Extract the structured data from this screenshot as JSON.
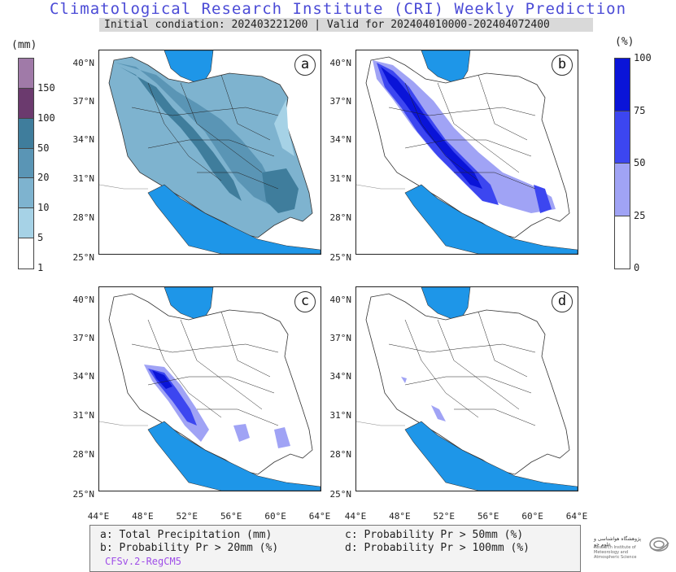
{
  "title": "Climatological Research Institute (CRI) Weekly Prediction",
  "subtitle": "Initial condiation: 202403221200 | Valid for 202404010000-202404072400",
  "precip_colorbar": {
    "unit": "(mm)",
    "ticks": [
      "150",
      "100",
      "50",
      "20",
      "10",
      "5",
      "1"
    ],
    "colors": [
      "#a07aa8",
      "#6b3a6e",
      "#3f7d9c",
      "#5a95b5",
      "#7eb3cf",
      "#a6d2e6",
      "#ffffff"
    ]
  },
  "prob_colorbar": {
    "unit": "(%)",
    "ticks": [
      "100",
      "75",
      "50",
      "25",
      "0"
    ],
    "colors": [
      "#0a14d8",
      "#3c46f0",
      "#a0a3f5",
      "#ffffff"
    ]
  },
  "panels": [
    {
      "label": "a"
    },
    {
      "label": "b"
    },
    {
      "label": "c"
    },
    {
      "label": "d"
    }
  ],
  "lat_labels": [
    "40°N",
    "37°N",
    "34°N",
    "31°N",
    "28°N",
    "25°N"
  ],
  "lon_labels": [
    "44°E",
    "48°E",
    "52°E",
    "56°E",
    "60°E",
    "64°E"
  ],
  "legend": {
    "a": "a: Total Precipitation (mm)",
    "b": "b: Probability Pr > 20mm (%)",
    "c": "c: Probability Pr > 50mm (%)",
    "d": "d: Probability Pr > 100mm (%)",
    "model": "CFSv.2-RegCM5"
  },
  "logo": {
    "name": "پژوهشگاه هواشناسی و علوم جو",
    "english": "Research Institute of Meteorology and Atmospheric Science"
  },
  "colors": {
    "sea": "#1e96e8",
    "title": "#4b4bd6",
    "model": "#9f4ee8"
  }
}
